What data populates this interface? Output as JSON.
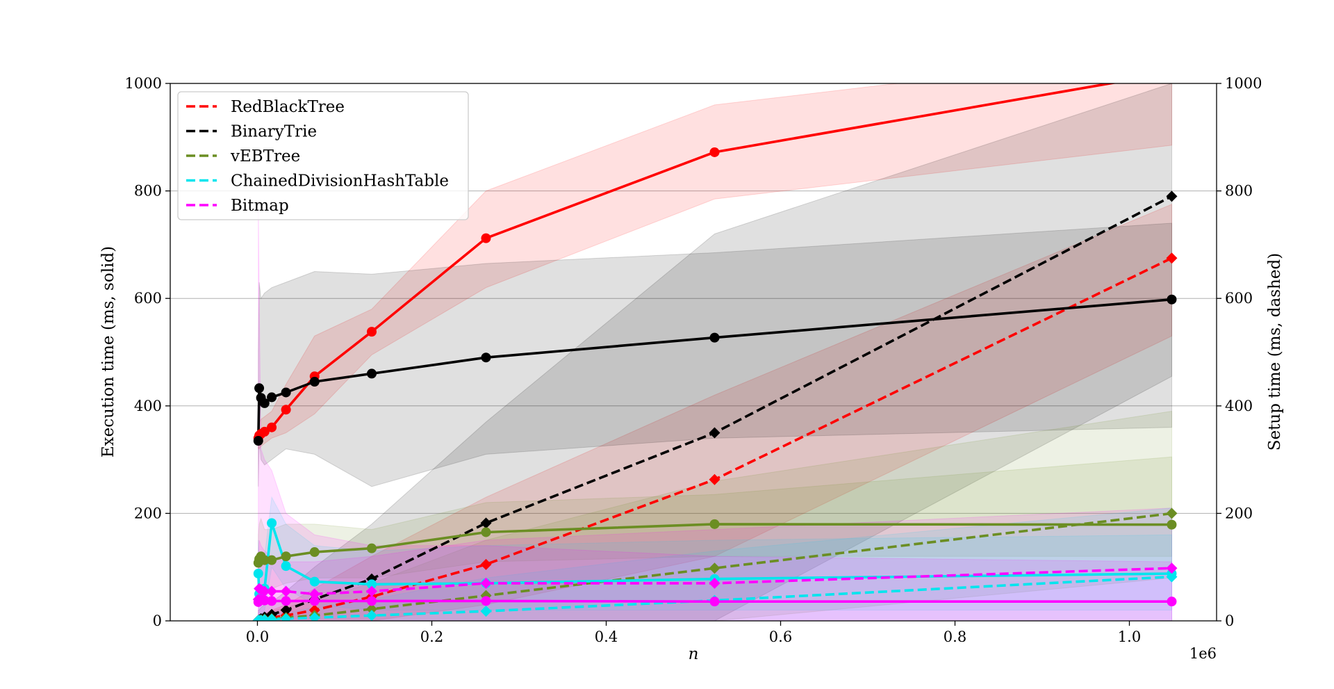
{
  "chart_data": {
    "type": "line",
    "xlabel": "n",
    "x_offset_label": "1e6",
    "ylabel_left": "Execution time (ms, solid)",
    "ylabel_right": "Setup time (ms, dashed)",
    "xlim": [
      -100000,
      1100000
    ],
    "ylim": [
      0,
      1000
    ],
    "y2lim": [
      0,
      1000
    ],
    "x_ticks": [
      0,
      200000,
      400000,
      600000,
      800000,
      1000000
    ],
    "x_tick_labels": [
      "0.0",
      "0.2",
      "0.4",
      "0.6",
      "0.8",
      "1.0"
    ],
    "y_ticks": [
      0,
      200,
      400,
      600,
      800,
      1000
    ],
    "y_tick_labels": [
      "0",
      "200",
      "400",
      "600",
      "800",
      "1000"
    ],
    "y2_tick_labels": [
      "0",
      "200",
      "400",
      "600",
      "800",
      "1000"
    ],
    "grid": "horizontal",
    "legend_position": "upper-left",
    "x": [
      1024,
      2048,
      4096,
      8192,
      16384,
      32768,
      65536,
      131072,
      262144,
      524288,
      1048576
    ],
    "series": [
      {
        "name": "RedBlackTree",
        "color": "#ff0000",
        "exec": [
          340,
          345,
          348,
          352,
          360,
          393,
          455,
          538,
          712,
          872,
          1020
        ],
        "exec_band_low": [
          320,
          320,
          325,
          330,
          340,
          350,
          385,
          495,
          620,
          785,
          885
        ],
        "exec_band_high": [
          370,
          370,
          375,
          380,
          390,
          440,
          530,
          580,
          800,
          960,
          1060
        ],
        "setup": [
          1,
          1,
          2,
          3,
          6,
          10,
          20,
          45,
          105,
          263,
          675
        ],
        "setup_band_low": [
          0,
          0,
          0,
          0,
          0,
          0,
          0,
          0,
          30,
          120,
          530
        ],
        "setup_band_high": [
          5,
          5,
          8,
          12,
          20,
          30,
          60,
          120,
          230,
          420,
          775
        ]
      },
      {
        "name": "BinaryTrie",
        "color": "#000000",
        "exec": [
          335,
          433,
          415,
          405,
          416,
          425,
          445,
          460,
          490,
          527,
          598
        ],
        "exec_band_low": [
          250,
          340,
          300,
          290,
          300,
          320,
          310,
          250,
          310,
          340,
          360
        ],
        "exec_band_high": [
          500,
          630,
          600,
          610,
          620,
          630,
          650,
          645,
          665,
          685,
          740
        ],
        "setup": [
          1,
          2,
          4,
          7,
          12,
          20,
          40,
          78,
          182,
          350,
          790
        ],
        "setup_band_low": [
          0,
          0,
          0,
          0,
          0,
          0,
          0,
          0,
          0,
          0,
          455
        ],
        "setup_band_high": [
          20,
          20,
          25,
          30,
          35,
          55,
          100,
          180,
          370,
          720,
          1000
        ]
      },
      {
        "name": "vEBTree",
        "color": "#6b8e23",
        "exec": [
          108,
          115,
          120,
          113,
          113,
          120,
          128,
          135,
          165,
          180,
          179
        ],
        "exec_band_low": [
          60,
          60,
          65,
          60,
          60,
          70,
          80,
          80,
          110,
          120,
          120
        ],
        "exec_band_high": [
          160,
          180,
          190,
          170,
          170,
          180,
          180,
          170,
          220,
          235,
          305
        ],
        "setup": [
          1,
          1,
          2,
          3,
          4,
          6,
          10,
          22,
          47,
          98,
          200
        ],
        "setup_band_low": [
          0,
          0,
          0,
          0,
          0,
          0,
          0,
          0,
          0,
          0,
          80
        ],
        "setup_band_high": [
          10,
          10,
          12,
          15,
          18,
          25,
          40,
          70,
          150,
          260,
          390
        ]
      },
      {
        "name": "ChainedDivisionHashTable",
        "color": "#00e5ee",
        "exec": [
          88,
          50,
          48,
          60,
          182,
          102,
          73,
          68,
          70,
          78,
          88
        ],
        "exec_band_low": [
          40,
          10,
          10,
          20,
          100,
          60,
          30,
          20,
          20,
          20,
          20
        ],
        "exec_band_high": [
          150,
          110,
          100,
          120,
          230,
          180,
          140,
          130,
          140,
          150,
          160
        ],
        "setup": [
          1,
          1,
          1,
          2,
          3,
          4,
          6,
          10,
          18,
          38,
          82
        ],
        "setup_band_low": [
          0,
          0,
          0,
          0,
          0,
          0,
          0,
          0,
          0,
          0,
          0
        ],
        "setup_band_high": [
          5,
          5,
          6,
          8,
          10,
          15,
          25,
          40,
          80,
          130,
          210
        ]
      },
      {
        "name": "Bitmap",
        "color": "#ff00ff",
        "exec": [
          35,
          38,
          40,
          38,
          37,
          37,
          37,
          37,
          37,
          36,
          36
        ],
        "exec_band_low": [
          0,
          0,
          0,
          0,
          0,
          0,
          0,
          0,
          0,
          0,
          0
        ],
        "exec_band_high": [
          780,
          600,
          320,
          300,
          280,
          200,
          160,
          140,
          140,
          120,
          110
        ],
        "setup": [
          40,
          60,
          58,
          55,
          55,
          55,
          50,
          55,
          70,
          70,
          98
        ],
        "setup_band_low": [
          0,
          0,
          0,
          0,
          0,
          0,
          0,
          0,
          0,
          0,
          0
        ],
        "setup_band_high": [
          120,
          150,
          140,
          130,
          120,
          110,
          110,
          120,
          150,
          170,
          210
        ]
      }
    ]
  }
}
